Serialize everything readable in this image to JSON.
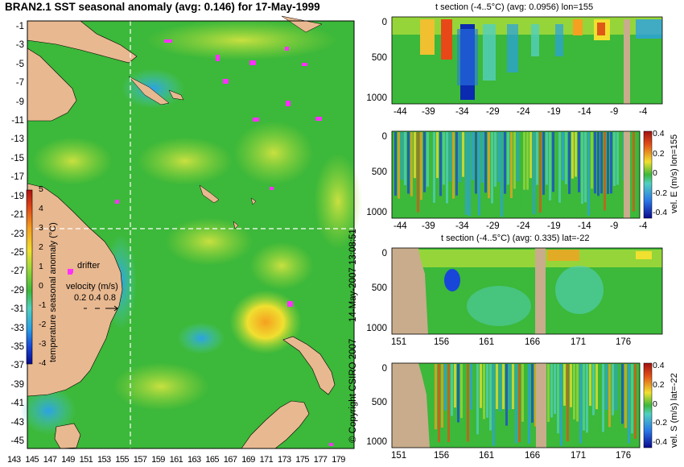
{
  "colors": {
    "scale": [
      "#0a0a8c",
      "#1846d8",
      "#2aa0e6",
      "#52d0c0",
      "#62c84a",
      "#2fb23a",
      "#9fd83a",
      "#f0e030",
      "#f5a020",
      "#e04818",
      "#b01010"
    ],
    "land": "#e8b890",
    "background_sea": "#3cb83a",
    "section_land": "#c8ac8c",
    "drifter": "#ff30ff",
    "crosshair": "#ffffff"
  },
  "header": {
    "map_title": "BRAN2.1 SST seasonal anomaly (avg: 0.146) for 17-May-1999",
    "copyright": "© Copyright CSIRO 2007",
    "timestamp": "14-May-2007 13:08:51"
  },
  "map": {
    "lat_ticks": [
      "-1",
      "-3",
      "-5",
      "-7",
      "-9",
      "-11",
      "-13",
      "-15",
      "-17",
      "-19",
      "-21",
      "-23",
      "-25",
      "-27",
      "-29",
      "-31",
      "-33",
      "-35",
      "-37",
      "-39",
      "-41",
      "-43",
      "-45"
    ],
    "lon_ticks": [
      "143",
      "145",
      "147",
      "149",
      "151",
      "153",
      "155",
      "157",
      "159",
      "161",
      "163",
      "165",
      "167",
      "169",
      "171",
      "173",
      "175",
      "177",
      "179"
    ],
    "colorbar_label": "temperature seasonal anomaly (°C)",
    "colorbar_ticks": [
      "5",
      "4",
      "3",
      "2",
      "1",
      "0",
      "-1",
      "-2",
      "-3",
      "-4"
    ],
    "drifter_label": "drifter",
    "velocity_label": "velocity (m/s)",
    "velocity_values": "0.2 0.4 0.8",
    "crosshair_lon": 155,
    "crosshair_lat": -22
  },
  "chart_data": [
    {
      "type": "heatmap",
      "title": "t section (-4..5°C) (avg: 0.0956) lon=155",
      "x_ticks": [
        "-44",
        "-39",
        "-34",
        "-29",
        "-24",
        "-19",
        "-14",
        "-9",
        "-4"
      ],
      "y_ticks": [
        "0",
        "500",
        "1000"
      ],
      "xlim": [
        -45,
        0
      ],
      "ylim": [
        0,
        1050
      ]
    },
    {
      "type": "heatmap",
      "title": "",
      "x_ticks": [
        "-44",
        "-39",
        "-34",
        "-29",
        "-24",
        "-19",
        "-14",
        "-9",
        "-4"
      ],
      "y_ticks": [
        "0",
        "500",
        "1000"
      ],
      "colorbar_label": "vel. E (m/s) lon=155",
      "colorbar_ticks": [
        "0.4",
        "0.2",
        "0",
        "-0.2",
        "-0.4"
      ]
    },
    {
      "type": "heatmap",
      "title": "t section (-4..5°C) (avg: 0.335) lat=-22",
      "x_ticks": [
        "151",
        "156",
        "161",
        "166",
        "171",
        "176"
      ],
      "y_ticks": [
        "0",
        "500",
        "1000"
      ],
      "xlim": [
        150,
        180
      ],
      "ylim": [
        0,
        1050
      ]
    },
    {
      "type": "heatmap",
      "title": "",
      "x_ticks": [
        "151",
        "156",
        "161",
        "166",
        "171",
        "176"
      ],
      "y_ticks": [
        "0",
        "500",
        "1000"
      ],
      "colorbar_label": "vel. S (m/s) lat=-22",
      "colorbar_ticks": [
        "0.4",
        "0.2",
        "0",
        "-0.2",
        "-0.4"
      ]
    }
  ]
}
